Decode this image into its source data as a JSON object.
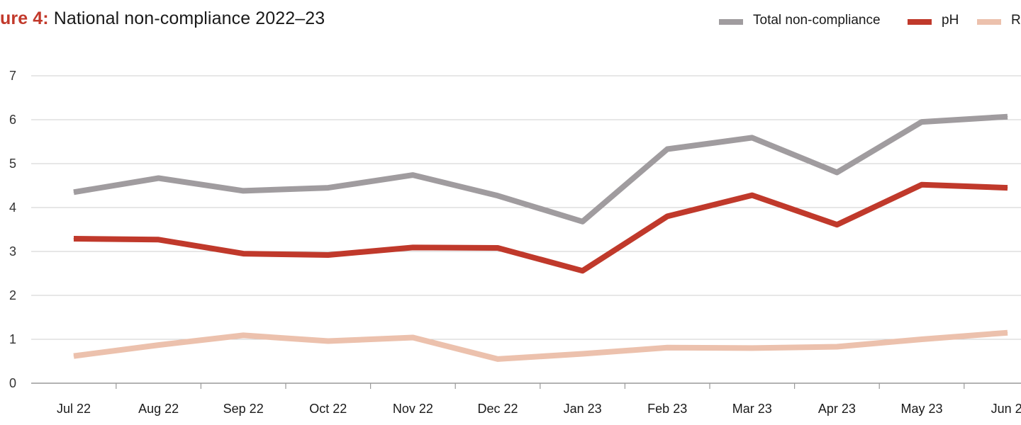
{
  "title": {
    "prefix": "ure 4:",
    "text": " National non-compliance 2022–23"
  },
  "legend": {
    "items": [
      {
        "label": "Total non-compliance",
        "color": "#a09c9f"
      },
      {
        "label": "pH",
        "color": "#c0392b"
      },
      {
        "label": "Ri",
        "color": "#ecc1ad"
      }
    ]
  },
  "chart_data": {
    "type": "line",
    "title": "National non-compliance 2022–23",
    "xlabel": "",
    "ylabel": "",
    "categories": [
      "Jul 22",
      "Aug 22",
      "Sep 22",
      "Oct 22",
      "Nov 22",
      "Dec 22",
      "Jan 23",
      "Feb 23",
      "Mar 23",
      "Apr 23",
      "May 23",
      "Jun 2"
    ],
    "ylim": [
      0,
      7
    ],
    "yticks": [
      "0",
      "1",
      "2",
      "3",
      "4",
      "5",
      "6",
      "7"
    ],
    "grid": true,
    "legend_position": "top-right",
    "series": [
      {
        "name": "Total non-compliance",
        "color": "#a09c9f",
        "values": [
          4.35,
          4.67,
          4.38,
          4.45,
          4.74,
          4.27,
          3.68,
          5.33,
          5.59,
          4.8,
          5.95,
          6.07
        ]
      },
      {
        "name": "pH",
        "color": "#c0392b",
        "values": [
          3.29,
          3.27,
          2.95,
          2.92,
          3.09,
          3.08,
          2.56,
          3.8,
          4.28,
          3.61,
          4.52,
          4.45
        ]
      },
      {
        "name": "Ri",
        "color": "#ecc1ad",
        "values": [
          0.62,
          0.87,
          1.09,
          0.96,
          1.04,
          0.55,
          0.67,
          0.81,
          0.8,
          0.83,
          1.0,
          1.15
        ]
      }
    ]
  }
}
